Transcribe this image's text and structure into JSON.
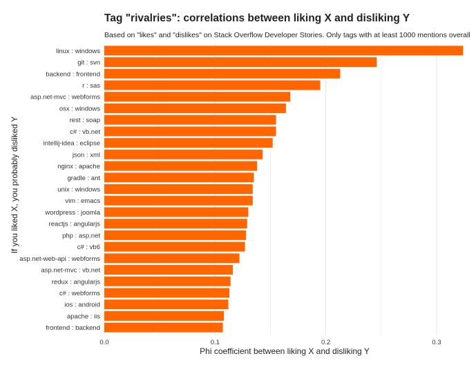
{
  "title": "Tag \"rivalries\": correlations between liking X and disliking Y",
  "subtitle": "Based on \"likes\" and \"dislikes\" on Stack Overflow Developer Stories. Only tags with at least 1000 mentions overall",
  "chart_data": {
    "type": "bar",
    "orientation": "horizontal",
    "xlabel": "Phi coefficient between liking X and disliking Y",
    "ylabel": "If you liked X, you probably disliked Y",
    "xlim": [
      0,
      0.325
    ],
    "xticks": [
      0.0,
      0.1,
      0.2,
      0.3
    ],
    "xtick_labels": [
      "0.0",
      "0.1",
      "0.2",
      "0.3"
    ],
    "grid": true,
    "bar_color": "#ff6600",
    "categories": [
      "linux : windows",
      "git : svn",
      "backend : frontend",
      "r : sas",
      "asp.net-mvc : webforms",
      "osx : windows",
      "rest : soap",
      "c# : vb.net",
      "intellij-idea : eclipse",
      "json : xml",
      "nginx : apache",
      "gradle : ant",
      "unix : windows",
      "vim : emacs",
      "wordpress : joomla",
      "reactjs : angularjs",
      "php : asp.net",
      "c# : vb6",
      "asp.net-web-api : webforms",
      "asp.net-mvc : vb.net",
      "redux : angularjs",
      "c# : webforms",
      "ios : android",
      "apache : iis",
      "frontend : backend"
    ],
    "values": [
      0.324,
      0.246,
      0.213,
      0.195,
      0.168,
      0.164,
      0.155,
      0.155,
      0.152,
      0.143,
      0.138,
      0.135,
      0.134,
      0.134,
      0.13,
      0.129,
      0.128,
      0.127,
      0.122,
      0.116,
      0.114,
      0.113,
      0.112,
      0.108,
      0.107
    ]
  }
}
